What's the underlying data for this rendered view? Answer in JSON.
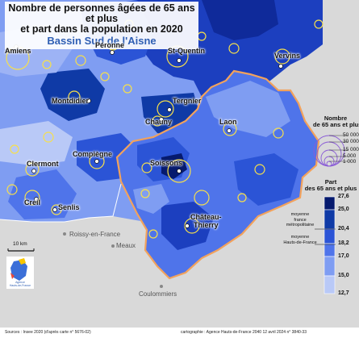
{
  "title": {
    "line1": "Nombre de personnes âgées de 65 ans et plus",
    "line2": "et part dans la population en 2020",
    "subtitle": "Bassin Sud de l'Aisne"
  },
  "cities": [
    {
      "name": "Amiens",
      "style": "bold"
    },
    {
      "name": "Péronne",
      "style": "bold"
    },
    {
      "name": "St-Quentin",
      "style": "bold"
    },
    {
      "name": "Vervins",
      "style": "bold"
    },
    {
      "name": "Montdidier",
      "style": "bold"
    },
    {
      "name": "Tergnier",
      "style": "bold"
    },
    {
      "name": "Chauny",
      "style": "bold"
    },
    {
      "name": "Laon",
      "style": "bold"
    },
    {
      "name": "Compiègne",
      "style": "bold"
    },
    {
      "name": "Soissons",
      "style": "bold"
    },
    {
      "name": "Clermont",
      "style": "bold"
    },
    {
      "name": "Creil",
      "style": "bold"
    },
    {
      "name": "Senlis",
      "style": "bold"
    },
    {
      "name": "Château-\nThierry",
      "style": "bold"
    },
    {
      "name": "Roissy-en-France",
      "style": "gray"
    },
    {
      "name": "Meaux",
      "style": "gray"
    },
    {
      "name": "Coulommiers",
      "style": "gray"
    }
  ],
  "legend_circles": {
    "title": "Nombre\nde 65 ans et plus",
    "values": [
      "50 000",
      "30 000",
      "15 000",
      "5 000",
      "1 000"
    ]
  },
  "legend_share": {
    "title": "Part\ndes 65 ans et plus",
    "breaks": [
      "27,6",
      "25,0",
      "20,4",
      "18,2",
      "17,0",
      "15,0",
      "12,7"
    ],
    "note_france": "moyenne\nfrance\nmétropolitaine",
    "note_hdf": "moyenne\nHauts-de-France",
    "colors": [
      "#061a6e",
      "#0f3aa6",
      "#2b54d6",
      "#4f74ea",
      "#7f9df2",
      "#b9c9f7"
    ]
  },
  "scale": {
    "label": "10 km"
  },
  "logo": {
    "text": "Agence\nHauts-de-France"
  },
  "footer": {
    "sources": "Sources : Insee 2020 (d'après carte n° 5676-02)",
    "credit": "cartographie : Agence Hauts-de-France 2040     12 avril 2024  n° 3840-33"
  }
}
